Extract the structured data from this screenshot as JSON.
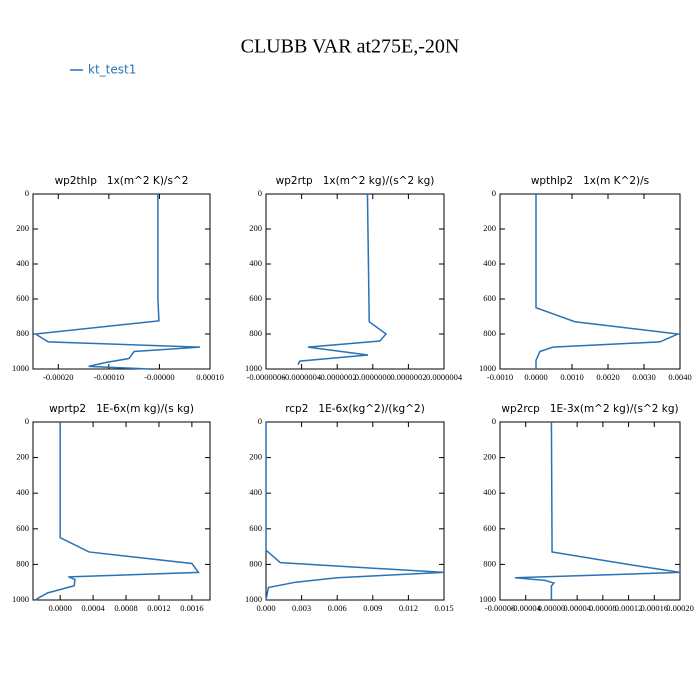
{
  "title": "CLUBB VAR at275E,-20N",
  "legend": {
    "name": "kt_test1",
    "color": "#2a72b5"
  },
  "chart_data": [
    {
      "type": "line",
      "title": "wp2thlp   1x(m^2 K)/s^2",
      "levels": [
        0,
        600,
        725,
        800,
        845,
        875,
        900,
        940,
        965,
        985,
        1000
      ],
      "values": [
        -3e-06,
        -3e-06,
        -1e-06,
        -0.000245,
        -0.00022,
        8e-05,
        -5e-05,
        -6e-05,
        -0.00011,
        -0.00014,
        -2e-05
      ],
      "xlim": [
        -0.00025,
        0.0001
      ],
      "xticks": [
        {
          "value": -0.0002,
          "label": "-0.00020"
        },
        {
          "value": -0.0001,
          "label": "-0.00010"
        },
        {
          "value": 0,
          "label": "-0.00000"
        },
        {
          "value": 0.0001,
          "label": "0.00010"
        }
      ],
      "ylim": [
        0,
        1000
      ],
      "yticks": [
        0,
        200,
        400,
        600,
        800,
        1000
      ],
      "y_inverted": true
    },
    {
      "type": "line",
      "title": "wp2rtp   1x(m^2 kg)/(s^2 kg)",
      "levels": [
        0,
        730,
        800,
        840,
        875,
        920,
        955,
        975
      ],
      "values": [
        -3e-08,
        -2e-08,
        7.4e-08,
        4e-08,
        -3.64e-07,
        -2.7e-08,
        -4.1e-07,
        -4.2e-07
      ],
      "xlim": [
        -6e-07,
        4e-07
      ],
      "xticks": [
        {
          "value": -6e-07,
          "label": "-0.0000006"
        },
        {
          "value": -4e-07,
          "label": "-0.0000004"
        },
        {
          "value": -2e-07,
          "label": "-0.0000002"
        },
        {
          "value": 0,
          "label": "0.0000000"
        },
        {
          "value": 2e-07,
          "label": "0.0000002"
        },
        {
          "value": 4e-07,
          "label": "0.0000004"
        }
      ],
      "ylim": [
        0,
        1000
      ],
      "yticks": [
        0,
        200,
        400,
        600,
        800,
        1000
      ],
      "y_inverted": true
    },
    {
      "type": "line",
      "title": "wpthlp2   1x(m K^2)/s",
      "levels": [
        0,
        650,
        730,
        800,
        845,
        875,
        900,
        950,
        1000
      ],
      "values": [
        0,
        0,
        0.00108,
        0.00394,
        0.00344,
        0.00047,
        0.00011,
        0,
        0
      ],
      "xlim": [
        -0.001,
        0.004
      ],
      "xticks": [
        {
          "value": -0.001,
          "label": "-0.0010"
        },
        {
          "value": 0,
          "label": "0.0000"
        },
        {
          "value": 0.001,
          "label": "0.0010"
        },
        {
          "value": 0.002,
          "label": "0.0020"
        },
        {
          "value": 0.003,
          "label": "0.0030"
        },
        {
          "value": 0.004,
          "label": "0.0040"
        }
      ],
      "ylim": [
        0,
        1000
      ],
      "yticks": [
        0,
        200,
        400,
        600,
        800,
        1000
      ],
      "y_inverted": true
    },
    {
      "type": "line",
      "title": "wprtp2   1E-6x(m kg)/(s kg)",
      "levels": [
        0,
        650,
        730,
        795,
        845,
        870,
        885,
        920,
        960,
        985,
        1000
      ],
      "values": [
        0,
        0,
        0.00035,
        0.0016,
        0.00168,
        0.0001,
        0.00018,
        0.00017,
        -0.00015,
        -0.00025,
        -0.0003
      ],
      "xlim": [
        -0.00033,
        0.00182
      ],
      "xticks": [
        {
          "value": 0,
          "label": "0.0000"
        },
        {
          "value": 0.0004,
          "label": "0.0004"
        },
        {
          "value": 0.0008,
          "label": "0.0008"
        },
        {
          "value": 0.0012,
          "label": "0.0012"
        },
        {
          "value": 0.0016,
          "label": "0.0016"
        }
      ],
      "ylim": [
        0,
        1000
      ],
      "yticks": [
        0,
        200,
        400,
        600,
        800,
        1000
      ],
      "y_inverted": true
    },
    {
      "type": "line",
      "title": "rcp2   1E-6x(kg^2)/(kg^2)",
      "levels": [
        0,
        720,
        790,
        845,
        875,
        900,
        930,
        1000
      ],
      "values": [
        0,
        0,
        0.0012,
        0.015,
        0.006,
        0.0025,
        0.0002,
        0
      ],
      "xlim": [
        0,
        0.015
      ],
      "xticks": [
        {
          "value": 0,
          "label": "0.000"
        },
        {
          "value": 0.003,
          "label": "0.003"
        },
        {
          "value": 0.006,
          "label": "0.006"
        },
        {
          "value": 0.009,
          "label": "0.009"
        },
        {
          "value": 0.012,
          "label": "0.012"
        },
        {
          "value": 0.015,
          "label": "0.015"
        }
      ],
      "ylim": [
        0,
        1000
      ],
      "yticks": [
        0,
        200,
        400,
        600,
        800,
        1000
      ],
      "y_inverted": true
    },
    {
      "type": "line",
      "title": "wp2rcp   1E-3x(m^2 kg)/(s^2 kg)",
      "levels": [
        0,
        730,
        800,
        845,
        875,
        890,
        905,
        920,
        1000
      ],
      "values": [
        0,
        1e-06,
        0.000119,
        0.0002,
        -5.67e-05,
        -1e-05,
        4e-06,
        0,
        0
      ],
      "xlim": [
        -8e-05,
        0.0002
      ],
      "xticks": [
        {
          "value": -8e-05,
          "label": "-0.00008"
        },
        {
          "value": -4e-05,
          "label": "-0.00004"
        },
        {
          "value": 0,
          "label": "0.00000"
        },
        {
          "value": 4e-05,
          "label": "0.00004"
        },
        {
          "value": 8e-05,
          "label": "0.00008"
        },
        {
          "value": 0.00012,
          "label": "0.00012"
        },
        {
          "value": 0.00016,
          "label": "0.00016"
        },
        {
          "value": 0.0002,
          "label": "0.00020"
        }
      ],
      "ylim": [
        0,
        1000
      ],
      "yticks": [
        0,
        200,
        400,
        600,
        800,
        1000
      ],
      "y_inverted": true
    }
  ]
}
